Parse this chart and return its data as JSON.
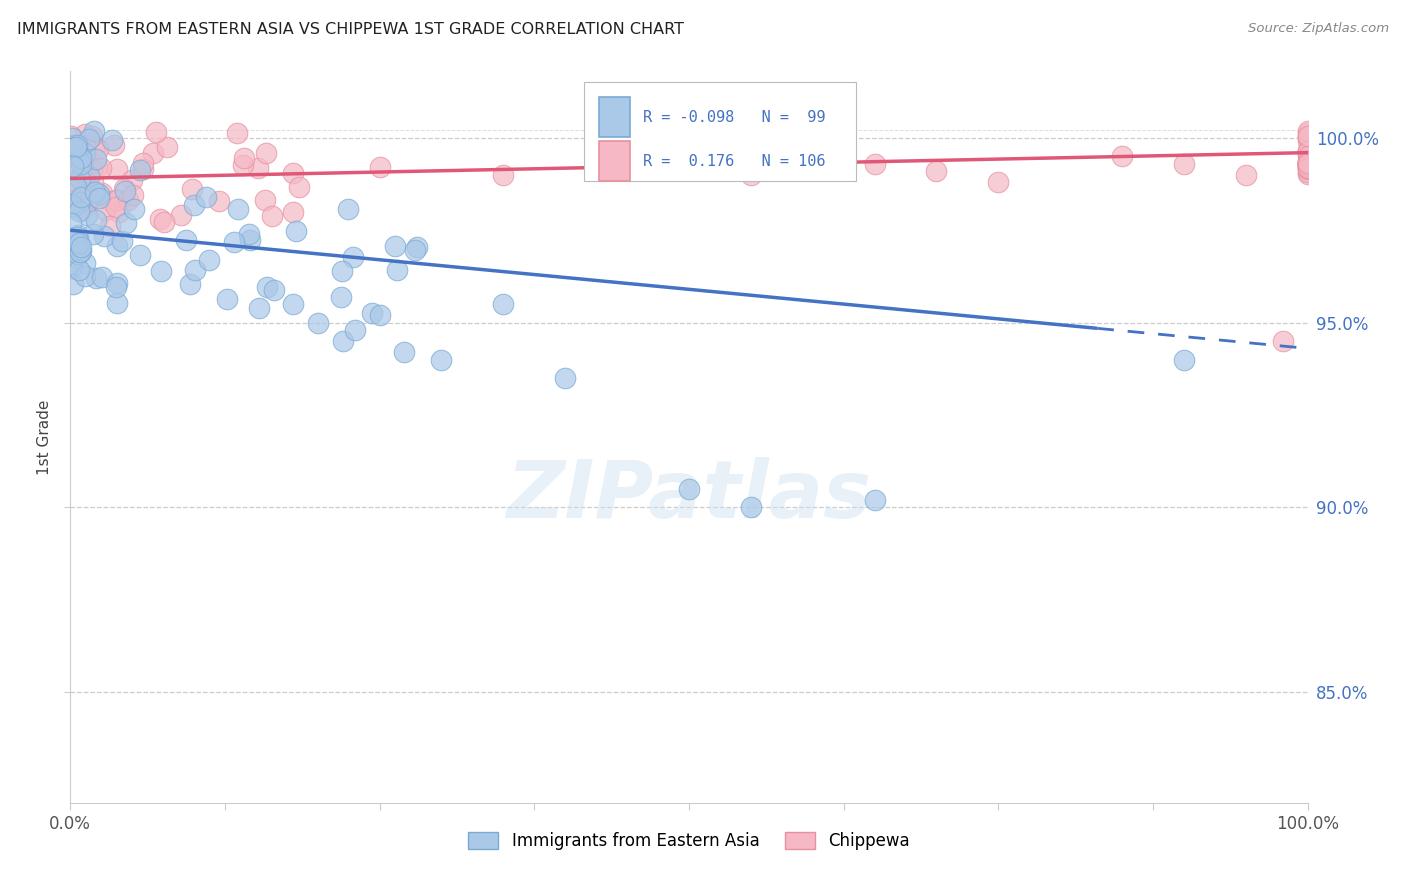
{
  "title": "IMMIGRANTS FROM EASTERN ASIA VS CHIPPEWA 1ST GRADE CORRELATION CHART",
  "source": "Source: ZipAtlas.com",
  "ylabel": "1st Grade",
  "blue_label": "Immigrants from Eastern Asia",
  "pink_label": "Chippewa",
  "blue_R": -0.098,
  "blue_N": 99,
  "pink_R": 0.176,
  "pink_N": 106,
  "blue_color": "#aac8e8",
  "pink_color": "#f5b8c4",
  "blue_edge_color": "#7aaad4",
  "pink_edge_color": "#e890a0",
  "blue_line_color": "#4472c4",
  "pink_line_color": "#e05878",
  "xmin": 0.0,
  "xmax": 100.0,
  "ymin": 82.0,
  "ymax": 101.8,
  "yticks": [
    85.0,
    90.0,
    95.0,
    100.0
  ],
  "watermark": "ZIPatlas",
  "blue_trend_y_start": 97.5,
  "blue_trend_y_end": 94.3,
  "blue_dash_x_start": 83,
  "pink_trend_y_start": 98.9,
  "pink_trend_y_end": 99.6,
  "seed": 77
}
